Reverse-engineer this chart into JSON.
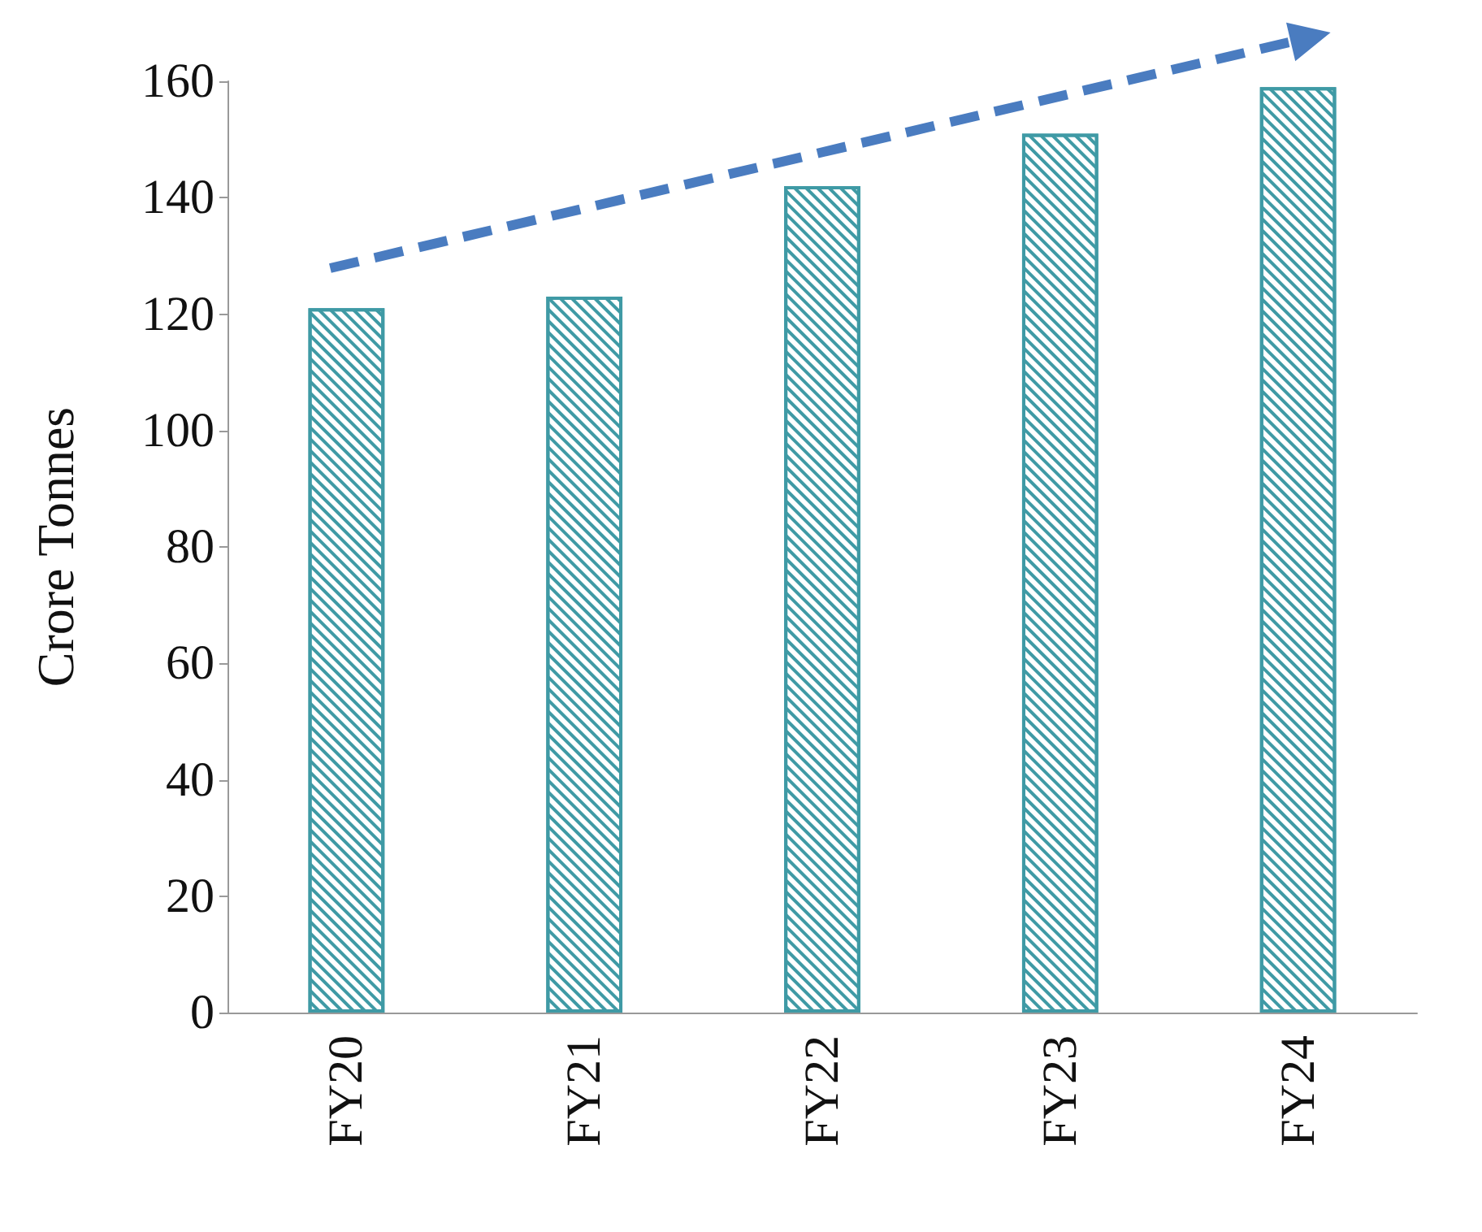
{
  "chart_data": {
    "type": "bar",
    "ylabel": "Crore Tonnes",
    "categories": [
      "FY20",
      "FY21",
      "FY22",
      "FY23",
      "FY24"
    ],
    "values": [
      121,
      123,
      142,
      151,
      159
    ],
    "color": "#3f9aa5",
    "ylim": [
      0,
      160
    ],
    "yticks": [
      0,
      20,
      40,
      60,
      80,
      100,
      120,
      140,
      160
    ],
    "grid": false
  }
}
